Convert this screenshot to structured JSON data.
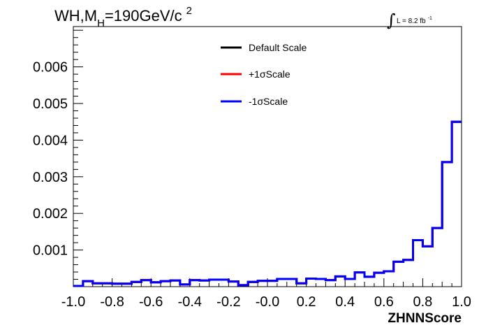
{
  "chart_data": {
    "type": "line",
    "title": {
      "prefix": "WH,M",
      "subscript": "H",
      "suffix": "=190GeV/c",
      "superscript": "2"
    },
    "lumi": {
      "symbol": "∫",
      "text": "L = 8.2 fb",
      "superscript": "-1"
    },
    "xlabel": "ZHNNScore",
    "ylabel": "",
    "xlim": [
      -1.0,
      1.0
    ],
    "ylim": [
      0,
      0.0071
    ],
    "x_ticks": [
      {
        "v": -1.0,
        "label": "-1.0"
      },
      {
        "v": -0.8,
        "label": "-0.8"
      },
      {
        "v": -0.6,
        "label": "-0.6"
      },
      {
        "v": -0.4,
        "label": "-0.4"
      },
      {
        "v": -0.2,
        "label": "-0.2"
      },
      {
        "v": 0.0,
        "label": "-0.0"
      },
      {
        "v": 0.2,
        "label": "0.2"
      },
      {
        "v": 0.4,
        "label": "0.4"
      },
      {
        "v": 0.6,
        "label": "0.6"
      },
      {
        "v": 0.8,
        "label": "0.8"
      },
      {
        "v": 1.0,
        "label": "1.0"
      }
    ],
    "y_ticks": [
      {
        "v": 0.001,
        "label": "0.001"
      },
      {
        "v": 0.002,
        "label": "0.002"
      },
      {
        "v": 0.003,
        "label": "0.003"
      },
      {
        "v": 0.004,
        "label": "0.004"
      },
      {
        "v": 0.005,
        "label": "0.005"
      },
      {
        "v": 0.006,
        "label": "0.006"
      }
    ],
    "bin_edges": [
      -1.0,
      -0.95,
      -0.9,
      -0.85,
      -0.8,
      -0.75,
      -0.7,
      -0.65,
      -0.6,
      -0.55,
      -0.5,
      -0.45,
      -0.4,
      -0.35,
      -0.3,
      -0.25,
      -0.2,
      -0.15,
      -0.1,
      -0.05,
      0.0,
      0.05,
      0.1,
      0.15,
      0.2,
      0.25,
      0.3,
      0.35,
      0.4,
      0.45,
      0.5,
      0.55,
      0.6,
      0.65,
      0.7,
      0.75,
      0.8,
      0.85,
      0.9,
      0.95,
      1.0
    ],
    "series": [
      {
        "name": "Default Scale",
        "color": "#000000",
        "values": [
          2e-05,
          0.00015,
          9e-05,
          9e-05,
          8e-05,
          8e-05,
          0.00013,
          0.00018,
          0.00012,
          0.00015,
          0.00017,
          6e-05,
          0.00018,
          0.00017,
          0.00019,
          0.00019,
          0.00014,
          4e-05,
          0.00013,
          0.00016,
          0.00016,
          0.00021,
          0.00021,
          9e-05,
          0.00022,
          0.00021,
          0.00018,
          0.00028,
          0.00021,
          0.00039,
          0.00027,
          0.00038,
          0.00042,
          0.00068,
          0.00073,
          0.00127,
          0.0011,
          0.0016,
          0.0034,
          0.0045
        ]
      },
      {
        "name": "+1σScale",
        "color": "#ff0000",
        "values": [
          2e-05,
          0.00015,
          9e-05,
          9e-05,
          8e-05,
          8e-05,
          0.00013,
          0.00018,
          0.00012,
          0.00015,
          0.00017,
          6e-05,
          0.00018,
          0.00017,
          0.00019,
          0.00019,
          0.00014,
          4e-05,
          0.00013,
          0.00016,
          0.00016,
          0.00021,
          0.00021,
          9e-05,
          0.00022,
          0.00021,
          0.00018,
          0.00028,
          0.00021,
          0.00039,
          0.00027,
          0.00038,
          0.00042,
          0.00068,
          0.00073,
          0.00127,
          0.0011,
          0.0016,
          0.0034,
          0.0045
        ]
      },
      {
        "name": "-1σScale",
        "color": "#0000ff",
        "values": [
          2e-05,
          0.00015,
          9e-05,
          9e-05,
          8e-05,
          8e-05,
          0.00013,
          0.00018,
          0.00012,
          0.00015,
          0.00017,
          6e-05,
          0.00018,
          0.00017,
          0.00019,
          0.00019,
          0.00014,
          4e-05,
          0.00013,
          0.00016,
          0.00016,
          0.00021,
          0.00021,
          9e-05,
          0.00022,
          0.00021,
          0.00018,
          0.00028,
          0.00021,
          0.00039,
          0.00027,
          0.00038,
          0.00042,
          0.00068,
          0.00073,
          0.00127,
          0.0011,
          0.0016,
          0.0034,
          0.0045
        ]
      }
    ],
    "legend": {
      "placement": "top-center"
    },
    "grid": false
  }
}
